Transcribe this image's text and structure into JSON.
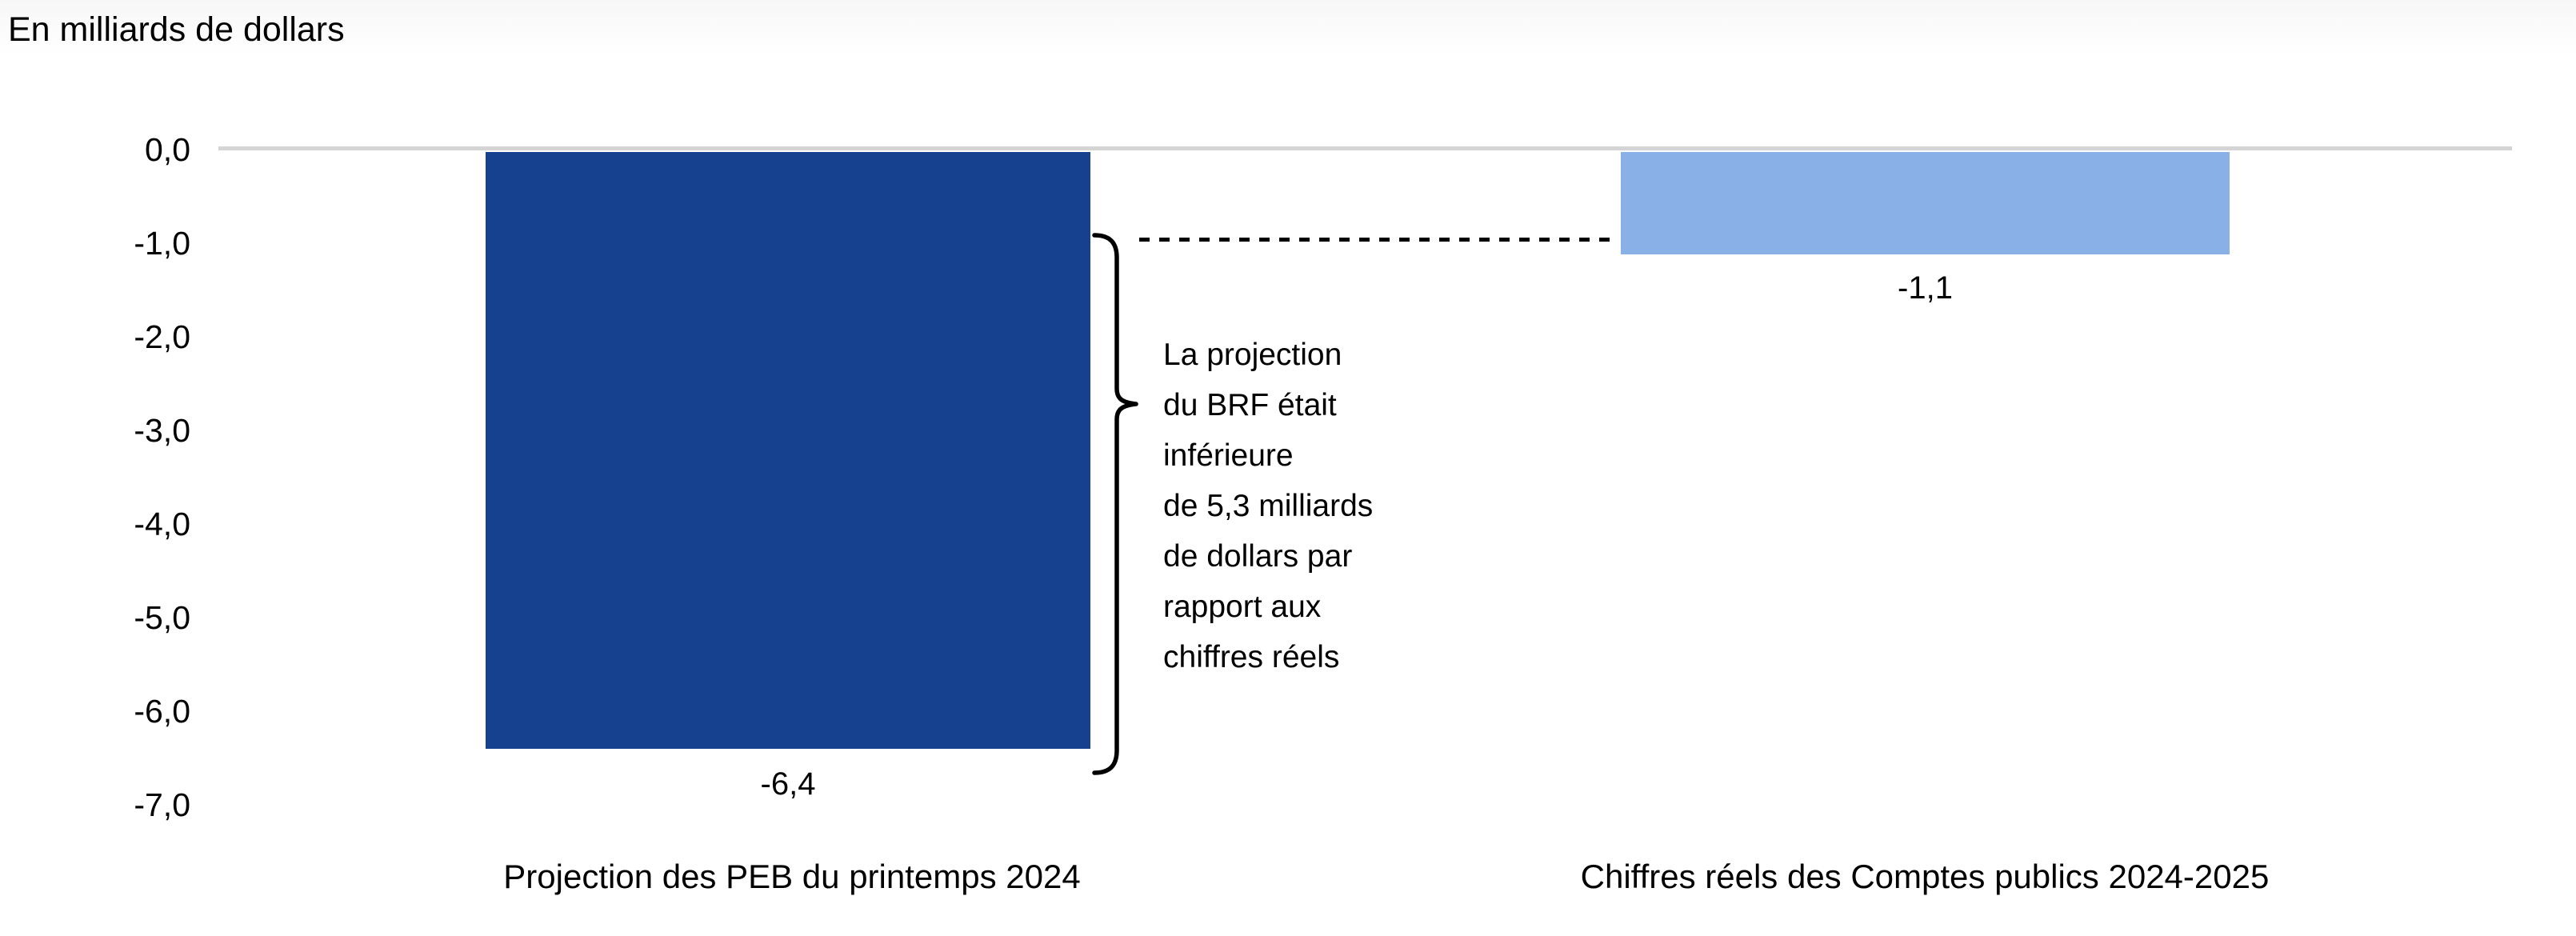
{
  "title": "En milliards de dollars",
  "chart_data": {
    "type": "bar",
    "orientation": "vertical",
    "categories": [
      "Projection des PEB du printemps 2024",
      "Chiffres réels des Comptes publics 2024-2025"
    ],
    "values": [
      -6.4,
      -1.1
    ],
    "data_labels": [
      "-6,4",
      "-1,1"
    ],
    "bar_colors": [
      "#16418F",
      "#8AB0E8"
    ],
    "title": "En milliards de dollars",
    "xlabel": "",
    "ylabel": "En milliards de dollars",
    "ylim": [
      -7.0,
      0.0
    ],
    "y_ticks": [
      "0,0",
      "-1,0",
      "-2,0",
      "-3,0",
      "-4,0",
      "-5,0",
      "-6,0",
      "-7,0"
    ],
    "gridlines": "zero-line-only",
    "legend": "none"
  },
  "annotation": {
    "lines": [
      "La projection",
      "du BRF était",
      "inférieure",
      "de 5,3 milliards",
      "de dollars par",
      "rapport aux",
      "chiffres réels"
    ]
  },
  "colors": {
    "bar_dark": "#16418F",
    "bar_light": "#8AB0E8",
    "zero_gridline": "#D4D4D4",
    "text": "#000000",
    "connector": "#000000"
  }
}
